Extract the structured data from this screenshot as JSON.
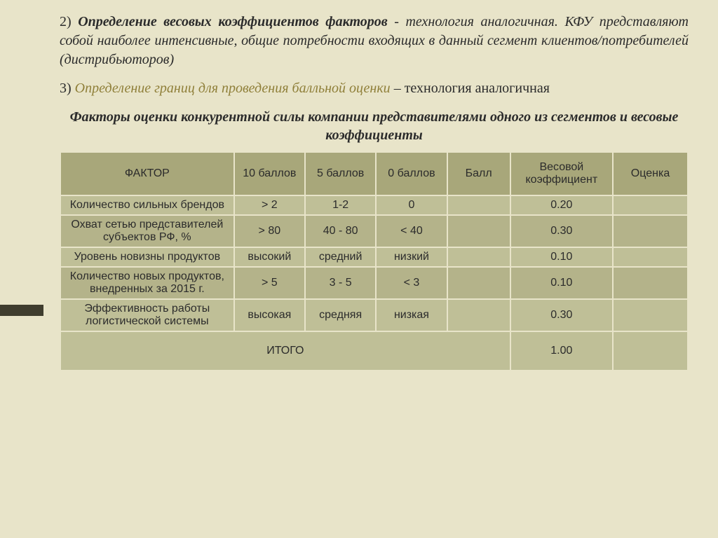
{
  "colors": {
    "page_bg": "#e8e4c9",
    "accent_bar": "#3f3d2e",
    "header_bg": "#a8a77a",
    "row_a_bg": "#bfbf97",
    "row_b_bg": "#b4b38a",
    "text": "#2b2b2b",
    "accent_text": "#8f7f39"
  },
  "paragraphs": {
    "p2_num": "2) ",
    "p2_lead": "Определение весовых коэффициентов факторов",
    "p2_rest": " - технология аналогичная. КФУ представляют собой наиболее интенсивные, общие потребности входящих в данный сегмент клиентов/потребителей (дистрибьюторов)",
    "p3_num": "3) ",
    "p3_lead": "Определение границ для проведения балльной оценки",
    "p3_rest": " – технология аналогичная"
  },
  "subtitle": "Факторы оценки конкурентной силы компании представителями одного из сегментов и весовые коэффициенты",
  "table": {
    "columns": [
      "ФАКТОР",
      "10 баллов",
      "5 баллов",
      "0 баллов",
      "Балл",
      "Весовой коэффициент",
      "Оценка"
    ],
    "rows": [
      {
        "factor": "Количество сильных брендов",
        "c10": "> 2",
        "c5": "1-2",
        "c0": "0",
        "ball": "",
        "coef": "0.20",
        "grade": ""
      },
      {
        "factor": "Охват сетью представителей субъектов РФ, %",
        "c10": "> 80",
        "c5": "40 - 80",
        "c0": "< 40",
        "ball": "",
        "coef": "0.30",
        "grade": ""
      },
      {
        "factor": "Уровень новизны продуктов",
        "c10": "высокий",
        "c5": "средний",
        "c0": "низкий",
        "ball": "",
        "coef": "0.10",
        "grade": ""
      },
      {
        "factor": "Количество новых продуктов, внедренных за 2015 г.",
        "c10": "> 5",
        "c5": "3 - 5",
        "c0": "< 3",
        "ball": "",
        "coef": "0.10",
        "grade": ""
      },
      {
        "factor": "Эффективность работы логистической системы",
        "c10": "высокая",
        "c5": "средняя",
        "c0": "низкая",
        "ball": "",
        "coef": "0.30",
        "grade": ""
      }
    ],
    "total_label": "ИТОГО",
    "total_coef": "1.00"
  }
}
